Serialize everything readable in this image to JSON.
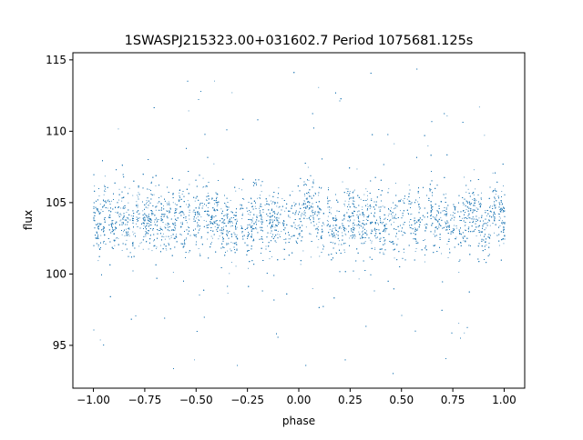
{
  "chart_data": {
    "type": "scatter",
    "title": "1SWASPJ215323.00+031602.7 Period 1075681.125s",
    "xlabel": "phase",
    "ylabel": "flux",
    "xlim": [
      -1.1,
      1.1
    ],
    "ylim": [
      92.0,
      115.5
    ],
    "xticks": [
      -1.0,
      -0.75,
      -0.5,
      -0.25,
      0.0,
      0.25,
      0.5,
      0.75,
      1.0
    ],
    "xtick_labels": [
      "−1.00",
      "−0.75",
      "−0.50",
      "−0.25",
      "0.00",
      "0.25",
      "0.50",
      "0.75",
      "1.00"
    ],
    "yticks": [
      95,
      100,
      105,
      110,
      115
    ],
    "ytick_labels": [
      "95",
      "100",
      "105",
      "110",
      "115"
    ],
    "grid": false,
    "legend": "none",
    "marker_color": "#1f77b4",
    "series": [
      {
        "phase_range": [
          -1.0,
          1.0
        ],
        "flux_center": 103.8,
        "flux_core_band": [
          101.0,
          107.0
        ],
        "flux_outlier_range": [
          93.0,
          114.5
        ],
        "points": [
          [
            -0.98,
            104.5
          ],
          [
            -0.95,
            103.2
          ],
          [
            -0.9,
            102.8
          ],
          [
            -0.86,
            103.6
          ],
          [
            -0.82,
            101.5
          ],
          [
            -0.78,
            104.2
          ],
          [
            -0.74,
            102.9
          ],
          [
            -0.7,
            103.8
          ],
          [
            -0.65,
            105.1
          ],
          [
            -0.6,
            103.4
          ],
          [
            -0.55,
            104.0
          ],
          [
            -0.5,
            102.6
          ],
          [
            -0.45,
            104.8
          ],
          [
            -0.4,
            103.1
          ],
          [
            -0.35,
            105.3
          ],
          [
            -0.3,
            103.7
          ],
          [
            -0.25,
            104.4
          ],
          [
            -0.2,
            102.9
          ],
          [
            -0.15,
            104.9
          ],
          [
            -0.1,
            103.5
          ],
          [
            -0.05,
            104.1
          ],
          [
            0.0,
            102.8
          ],
          [
            0.05,
            103.9
          ],
          [
            0.1,
            104.6
          ],
          [
            0.15,
            102.7
          ],
          [
            0.2,
            103.3
          ],
          [
            0.25,
            104.0
          ],
          [
            0.3,
            102.5
          ],
          [
            0.35,
            104.7
          ],
          [
            0.4,
            103.6
          ],
          [
            0.45,
            104.2
          ],
          [
            0.5,
            103.0
          ],
          [
            0.55,
            105.0
          ],
          [
            0.6,
            103.8
          ],
          [
            0.65,
            104.5
          ],
          [
            0.7,
            103.2
          ],
          [
            0.75,
            104.1
          ],
          [
            0.8,
            102.9
          ],
          [
            0.85,
            104.8
          ],
          [
            0.9,
            103.5
          ],
          [
            0.95,
            104.0
          ],
          [
            1.0,
            103.1
          ]
        ]
      }
    ]
  }
}
